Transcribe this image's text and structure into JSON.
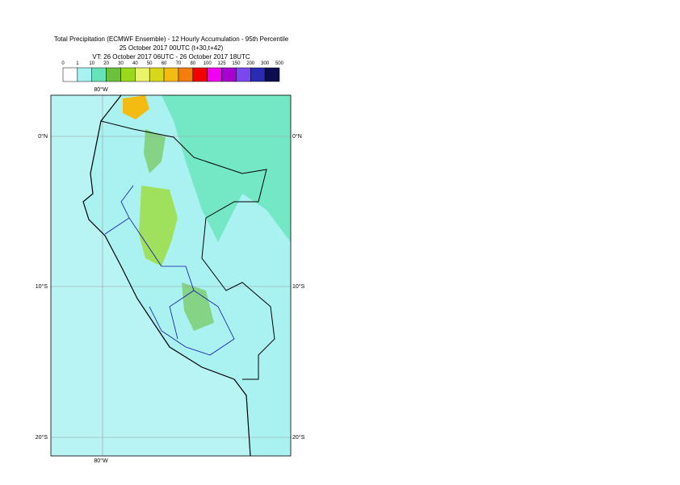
{
  "header": {
    "title": "Total Precipitation (ECMWF Ensemble) - 12 Hourly Accumulation - 95th Percentile",
    "subtitle": "25 October 2017 00UTC (t+30,t+42)",
    "valid_time": "VT: 26 October 2017 06UTC - 26 October 2017 18UTC"
  },
  "legend": {
    "levels": [
      0,
      1,
      10,
      20,
      30,
      40,
      50,
      60,
      70,
      80,
      100,
      125,
      150,
      200,
      300,
      500
    ],
    "colors": [
      "#ffffff",
      "#aaf2f2",
      "#66e3b8",
      "#6cc03c",
      "#9ad81c",
      "#e8f46a",
      "#d8d81a",
      "#f4bb12",
      "#f47e0c",
      "#f20000",
      "#f200f2",
      "#a800d0",
      "#7a48ee",
      "#2a2ab4",
      "#0c0c50"
    ]
  },
  "map": {
    "lon_labels": [
      "80°W",
      "80°W"
    ],
    "lat_labels": [
      "0°N",
      "0°N",
      "10°S",
      "10°S",
      "20°S",
      "20°S"
    ]
  }
}
